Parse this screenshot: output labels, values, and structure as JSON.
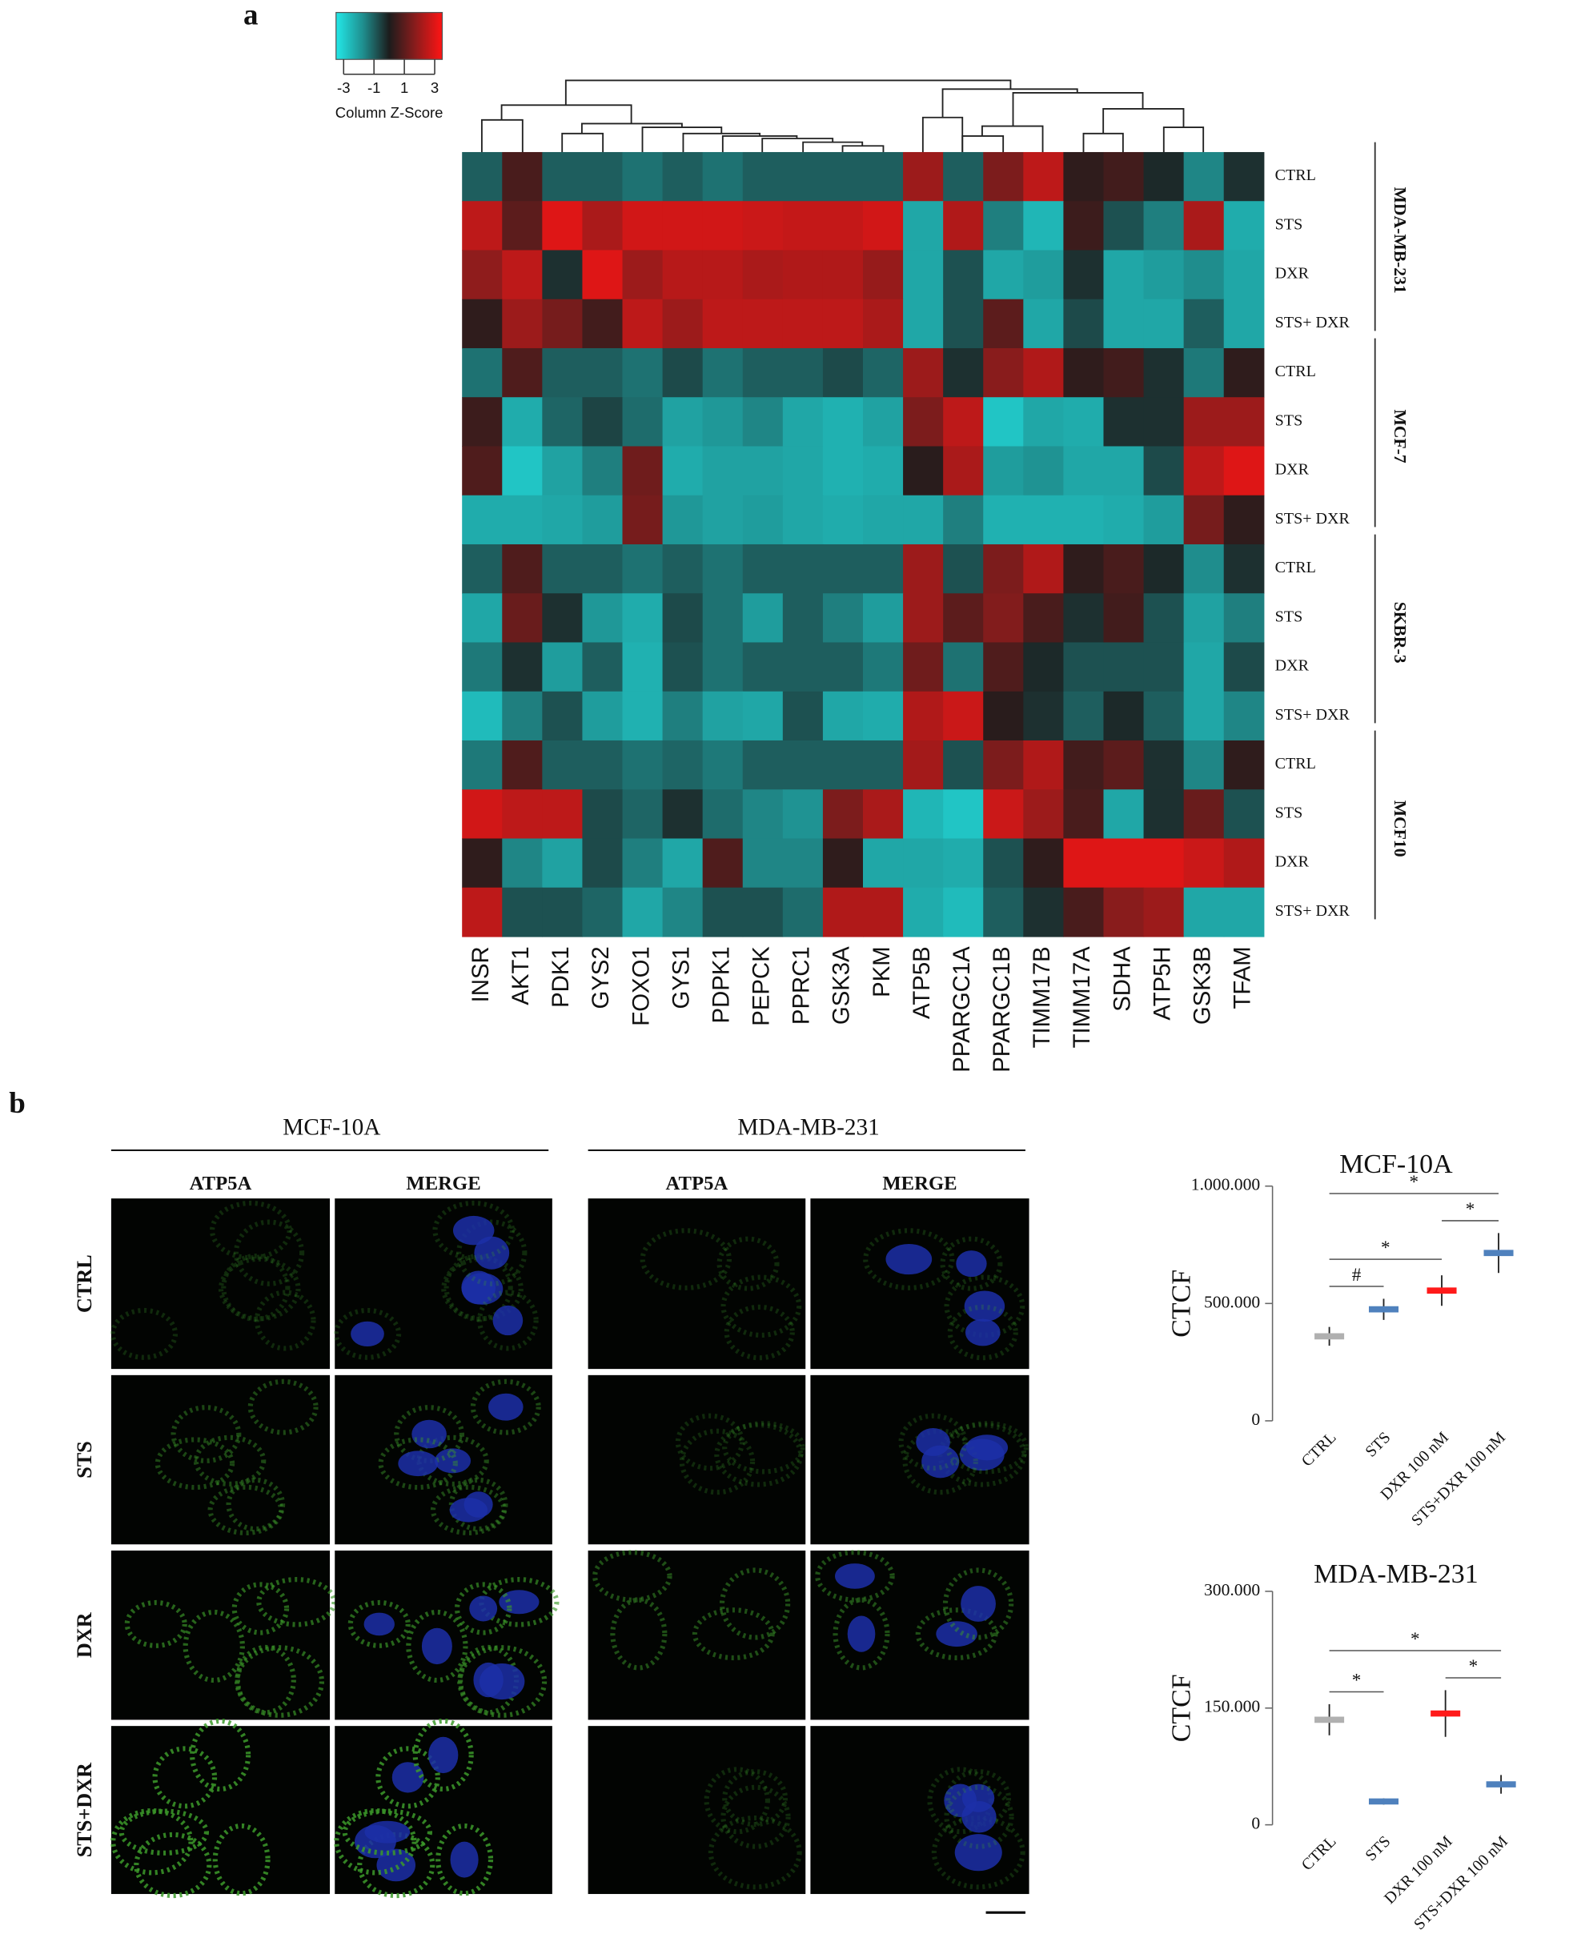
{
  "panel_labels": [
    "a",
    "b"
  ],
  "images": {
    "lines": [
      "MCF-10A",
      "MDA-MB-231"
    ],
    "channels": [
      "ATP5A",
      "MERGE"
    ],
    "conditions": [
      "CTRL",
      "STS",
      "DXR",
      "STS+DXR"
    ]
  },
  "chart_data": [
    {
      "type": "heatmap",
      "columns": [
        "INSR",
        "AKT1",
        "PDK1",
        "GYS2",
        "FOXO1",
        "GYS1",
        "PDPK1",
        "PEPCK",
        "PPRC1",
        "GSK3A",
        "PKM",
        "ATP5B",
        "PPARGC1A",
        "PPARGC1B",
        "TIMM17B",
        "TIMM17A",
        "SDHA",
        "ATP5H",
        "GSK3B",
        "TFAM"
      ],
      "rows": [
        "CTRL",
        "STS",
        "DXR",
        "STS+ DXR",
        "CTRL",
        "STS",
        "DXR",
        "STS+ DXR",
        "CTRL",
        "STS",
        "DXR",
        "STS+ DXR",
        "CTRL",
        "STS",
        "DXR",
        "STS+ DXR"
      ],
      "row_groups": [
        "MDA-MB-231",
        "MCF-7",
        "SKBR-3",
        "MCF10"
      ],
      "zlim": [
        -3.5,
        3.5
      ],
      "colormap": [
        "#22e8e8",
        "#1f9090",
        "#1c1c1c",
        "#8c1c1c",
        "#ff1414"
      ],
      "colorbar": {
        "label": "Column Z-Score",
        "ticks": [
          -3,
          -1,
          1,
          3
        ]
      },
      "values": [
        [
          -1,
          0.7,
          -1,
          -1,
          -1.3,
          -1,
          -1.3,
          -1,
          -1,
          -1,
          -1,
          2,
          -1,
          1.5,
          2.5,
          0.3,
          0.6,
          -0.2,
          -1.6,
          -0.3
        ],
        [
          2.5,
          1,
          3,
          2.2,
          2.8,
          2.8,
          2.8,
          2.7,
          2.6,
          2.6,
          2.8,
          -2.2,
          2.3,
          -1.5,
          -2.5,
          0.5,
          -0.8,
          -1.5,
          2.2,
          -2.3
        ],
        [
          1.8,
          2.5,
          -0.3,
          3,
          2,
          2.4,
          2.4,
          2.2,
          2.3,
          2.3,
          1.9,
          -2.2,
          -0.8,
          -2.2,
          -2,
          -0.3,
          -2.2,
          -2,
          -1.7,
          -2.2
        ],
        [
          0.3,
          2,
          1.4,
          0.6,
          2.5,
          2,
          2.5,
          2.5,
          2.5,
          2.5,
          2.2,
          -2.2,
          -0.8,
          1,
          -2.2,
          -0.7,
          -2.2,
          -2.2,
          -1,
          -2.2
        ],
        [
          -1.3,
          0.8,
          -1,
          -1,
          -1.3,
          -0.7,
          -1.3,
          -1,
          -1,
          -0.7,
          -1.1,
          2,
          -0.3,
          1.7,
          2.3,
          0.3,
          0.6,
          -0.3,
          -1.4,
          0.3
        ],
        [
          0.5,
          -2.3,
          -1.1,
          -0.6,
          -1.2,
          -2.1,
          -1.9,
          -1.6,
          -2.2,
          -2.4,
          -2.1,
          1.5,
          2.5,
          -2.8,
          -2.2,
          -2.3,
          -0.3,
          -0.3,
          2,
          2
        ],
        [
          0.8,
          -2.8,
          -2.1,
          -1.5,
          1.3,
          -2.3,
          -2.1,
          -2.1,
          -2.2,
          -2.4,
          -2.3,
          0.2,
          2.2,
          -2,
          -1.8,
          -2.2,
          -2.2,
          -0.7,
          2.5,
          3
        ],
        [
          -2.3,
          -2.3,
          -2.2,
          -2,
          1.4,
          -1.9,
          -2.1,
          -2,
          -2.2,
          -2.3,
          -2.2,
          -2.2,
          -1.5,
          -2.4,
          -2.4,
          -2.4,
          -2.3,
          -2,
          1.4,
          0.3
        ],
        [
          -1,
          0.8,
          -1,
          -1,
          -1.3,
          -1,
          -1.3,
          -1,
          -1,
          -1,
          -1,
          2,
          -0.8,
          1.5,
          2.3,
          0.3,
          0.7,
          -0.2,
          -1.7,
          -0.3
        ],
        [
          -2.2,
          1.2,
          -0.3,
          -1.9,
          -2.3,
          -0.7,
          -1.3,
          -2,
          -1,
          -1.5,
          -2,
          2,
          1,
          1.6,
          0.7,
          -0.3,
          0.6,
          -0.8,
          -2.1,
          -1.5
        ],
        [
          -1.4,
          -0.3,
          -2,
          -1,
          -2.4,
          -0.8,
          -1.3,
          -1,
          -1,
          -1,
          -1.4,
          1.3,
          -1.3,
          0.8,
          -0.2,
          -0.8,
          -0.8,
          -0.8,
          -2.2,
          -0.7
        ],
        [
          -2.6,
          -1.5,
          -0.8,
          -2,
          -2.4,
          -1.5,
          -2.1,
          -2.2,
          -0.8,
          -2.2,
          -2.3,
          2.3,
          2.7,
          0.2,
          -0.3,
          -1,
          -0.2,
          -1,
          -2.2,
          -1.6
        ],
        [
          -1.4,
          0.8,
          -1,
          -1,
          -1.3,
          -1.1,
          -1.4,
          -1,
          -1,
          -1,
          -1,
          2.1,
          -0.8,
          1.5,
          2.3,
          0.6,
          1,
          -0.3,
          -1.6,
          0.3
        ],
        [
          2.8,
          2.5,
          2.5,
          -0.7,
          -1.1,
          -0.3,
          -1.2,
          -1.6,
          -1.8,
          1.5,
          2.2,
          -2.5,
          -2.8,
          2.7,
          2,
          0.7,
          -2.2,
          -0.3,
          1.2,
          -0.8
        ],
        [
          0.3,
          -1.6,
          -2.1,
          -0.7,
          -1.5,
          -2.2,
          0.8,
          -1.6,
          -1.6,
          0.3,
          -2.2,
          -2.2,
          -2.3,
          -0.8,
          0.3,
          3,
          3,
          3,
          2.7,
          2.3
        ],
        [
          2.5,
          -0.8,
          -0.8,
          -1.1,
          -2.2,
          -1.6,
          -0.8,
          -0.8,
          -1.2,
          2.3,
          2.3,
          -2.3,
          -2.6,
          -1,
          -0.3,
          0.7,
          1.7,
          2,
          -2.2,
          -2.2
        ]
      ]
    },
    {
      "type": "errorbar",
      "title": "MCF-10A",
      "y_label": "CTCF",
      "categories": [
        "CTRL",
        "STS",
        "DXR 100 nM",
        "STS+DXR 100 nM"
      ],
      "values": [
        360000,
        475000,
        555000,
        715000
      ],
      "errors": [
        40000,
        45000,
        65000,
        85000
      ],
      "colors": [
        "#b0b0b0",
        "#4f81bd",
        "#ff1a1a",
        "#4f81bd"
      ],
      "ylim": [
        0,
        1000000
      ],
      "yticks": [
        0,
        {
          "value": 500000,
          "label": "500.000"
        },
        {
          "value": 1000000,
          "label": "1.000.000"
        }
      ],
      "annotations": [
        {
          "text": "*",
          "from": "CTRL",
          "to": "STS+DXR 100 nM"
        },
        {
          "text": "*",
          "from": "DXR 100 nM",
          "to": "STS+DXR 100 nM"
        },
        {
          "text": "*",
          "from": "CTRL",
          "to": "DXR 100 nM"
        },
        {
          "text": "#",
          "from": "CTRL",
          "to": "STS"
        }
      ]
    },
    {
      "type": "errorbar",
      "title": "MDA-MB-231",
      "y_label": "CTCF",
      "categories": [
        "CTRL",
        "STS",
        "DXR 100 nM",
        "STS+DXR 100 nM"
      ],
      "values": [
        135000,
        30000,
        143000,
        52000
      ],
      "errors": [
        20000,
        4000,
        30000,
        12000
      ],
      "colors": [
        "#b0b0b0",
        "#4f81bd",
        "#ff1a1a",
        "#4f81bd"
      ],
      "ylim": [
        0,
        300000
      ],
      "yticks": [
        0,
        {
          "value": 150000,
          "label": "150.000"
        },
        {
          "value": 300000,
          "label": "300.000"
        }
      ],
      "annotations": [
        {
          "text": "*",
          "from": "CTRL",
          "to": "STS+DXR 100 nM"
        },
        {
          "text": "*",
          "from": "CTRL",
          "to": "STS"
        },
        {
          "text": "*",
          "from": "DXR 100 nM",
          "to": "STS+DXR 100 nM"
        }
      ]
    }
  ]
}
